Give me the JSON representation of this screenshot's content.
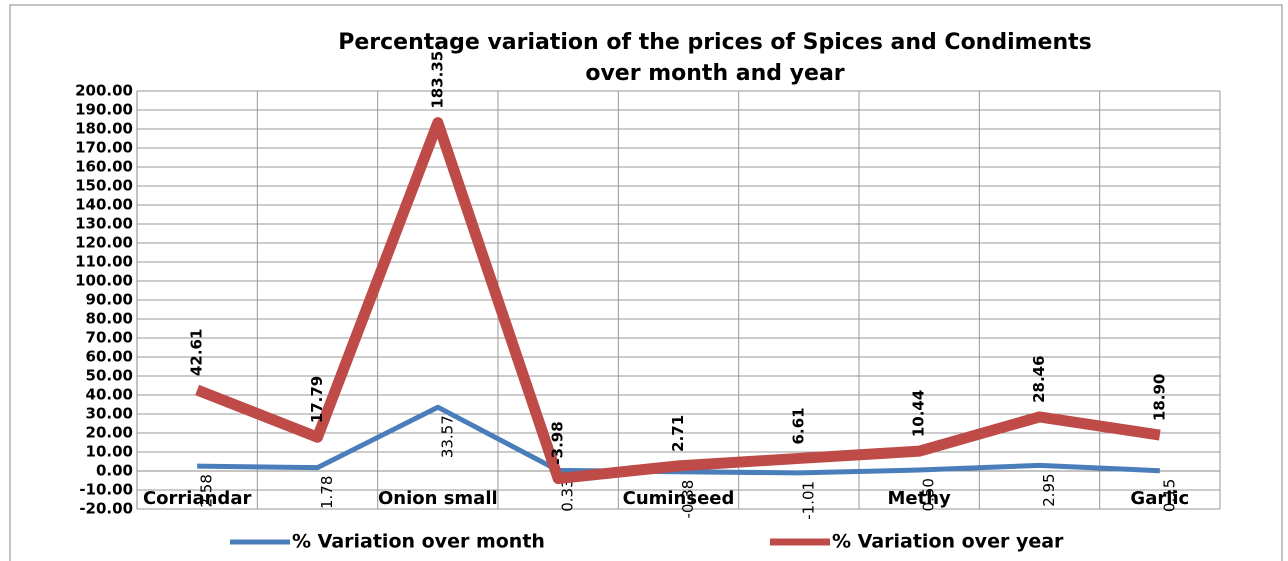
{
  "chart_data": {
    "type": "line",
    "title": "Percentage variation of the prices of Spices and Condiments",
    "subtitle": "over month and year",
    "categories": [
      "Corriandar",
      null,
      "Onion small",
      null,
      "Cuminseed",
      null,
      "Methy",
      null,
      "Garlic"
    ],
    "series": [
      {
        "name": "%  Variation over month",
        "color": "#4a7ebb",
        "values": [
          2.58,
          1.78,
          33.57,
          0.33,
          -0.38,
          -1.01,
          0.5,
          2.95,
          0.15
        ],
        "value_labels": [
          "2.58",
          "1.78",
          "33.57",
          "0.33",
          "-0.38",
          "-1.01",
          "0.50",
          "2.95",
          "0.15"
        ]
      },
      {
        "name": "%  Variation over year",
        "color": "#be4b48",
        "values": [
          42.61,
          17.79,
          183.35,
          -3.98,
          2.71,
          6.61,
          10.44,
          28.46,
          18.9
        ],
        "value_labels": [
          "42.61",
          "17.79",
          "183.35",
          "-3.98",
          "2.71",
          "6.61",
          "10.44",
          "28.46",
          "18.90"
        ]
      }
    ],
    "ylim": [
      -20,
      200
    ],
    "yticks": [
      {
        "value": -20,
        "label": "-20.00"
      },
      {
        "value": -10,
        "label": "-10.00"
      },
      {
        "value": 0,
        "label": "0.00"
      },
      {
        "value": 10,
        "label": "10.00"
      },
      {
        "value": 20,
        "label": "20.00"
      },
      {
        "value": 30,
        "label": "30.00"
      },
      {
        "value": 40,
        "label": "40.00"
      },
      {
        "value": 50,
        "label": "50.00"
      },
      {
        "value": 60,
        "label": "60.00"
      },
      {
        "value": 70,
        "label": "70.00"
      },
      {
        "value": 80,
        "label": "80.00"
      },
      {
        "value": 90,
        "label": "90.00"
      },
      {
        "value": 100,
        "label": "100.00"
      },
      {
        "value": 110,
        "label": "110.00"
      },
      {
        "value": 120,
        "label": "120.00"
      },
      {
        "value": 130,
        "label": "130.00"
      },
      {
        "value": 140,
        "label": "140.00"
      },
      {
        "value": 150,
        "label": "150.00"
      },
      {
        "value": 160,
        "label": "160.00"
      },
      {
        "value": 170,
        "label": "170.00"
      },
      {
        "value": 180,
        "label": "180.00"
      },
      {
        "value": 190,
        "label": "190.00"
      },
      {
        "value": 200,
        "label": "200.00"
      }
    ],
    "grid": true
  }
}
